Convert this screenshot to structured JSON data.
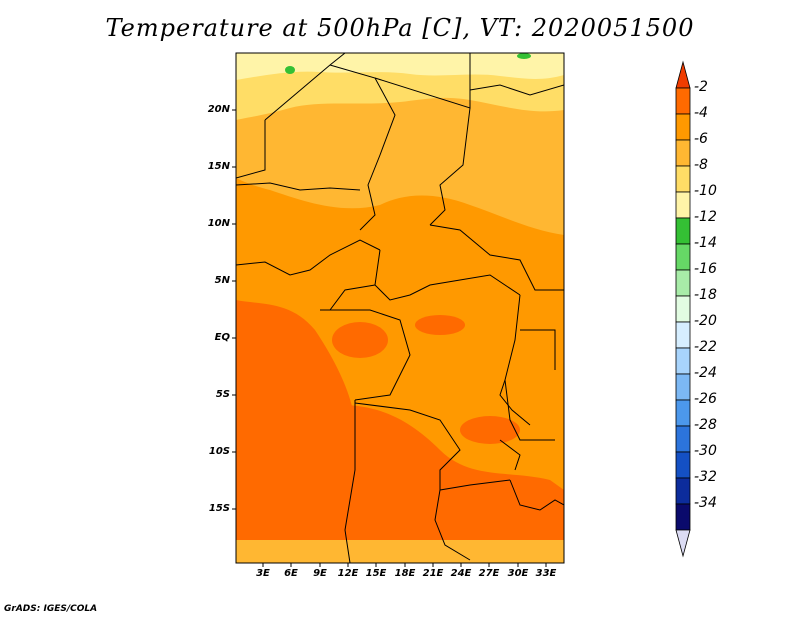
{
  "title": "Temperature at 500hPa [C], VT: 2020051500",
  "footer": "GrADS: IGES/COLA",
  "map": {
    "lat_labels": [
      "20N",
      "15N",
      "10N",
      "5N",
      "EQ",
      "5S",
      "10S",
      "15S"
    ],
    "lon_labels": [
      "3E",
      "6E",
      "9E",
      "12E",
      "15E",
      "18E",
      "21E",
      "24E",
      "27E",
      "30E",
      "33E"
    ]
  },
  "colorbar": {
    "labels": [
      "-2",
      "-4",
      "-6",
      "-8",
      "-10",
      "-12",
      "-14",
      "-16",
      "-18",
      "-20",
      "-22",
      "-24",
      "-26",
      "-28",
      "-30",
      "-32",
      "-34"
    ],
    "colors": [
      "#f03c00",
      "#ff6a00",
      "#ff9900",
      "#ffb732",
      "#ffdd66",
      "#fff4a8",
      "#34c034",
      "#66d866",
      "#a8eca8",
      "#e2fce2",
      "#d6eeff",
      "#a8d4fc",
      "#7cb8f4",
      "#4c98ec",
      "#2c74dc",
      "#1450c4",
      "#0c2c9c",
      "#0a0a6c",
      "#dcdcf4"
    ]
  },
  "colors": {
    "warm_core": "#ff6a00",
    "warm": "#ff9900",
    "mild": "#ffb732",
    "cool": "#ffdd66",
    "coolest": "#fff4a8",
    "green_patch": "#34c034"
  }
}
